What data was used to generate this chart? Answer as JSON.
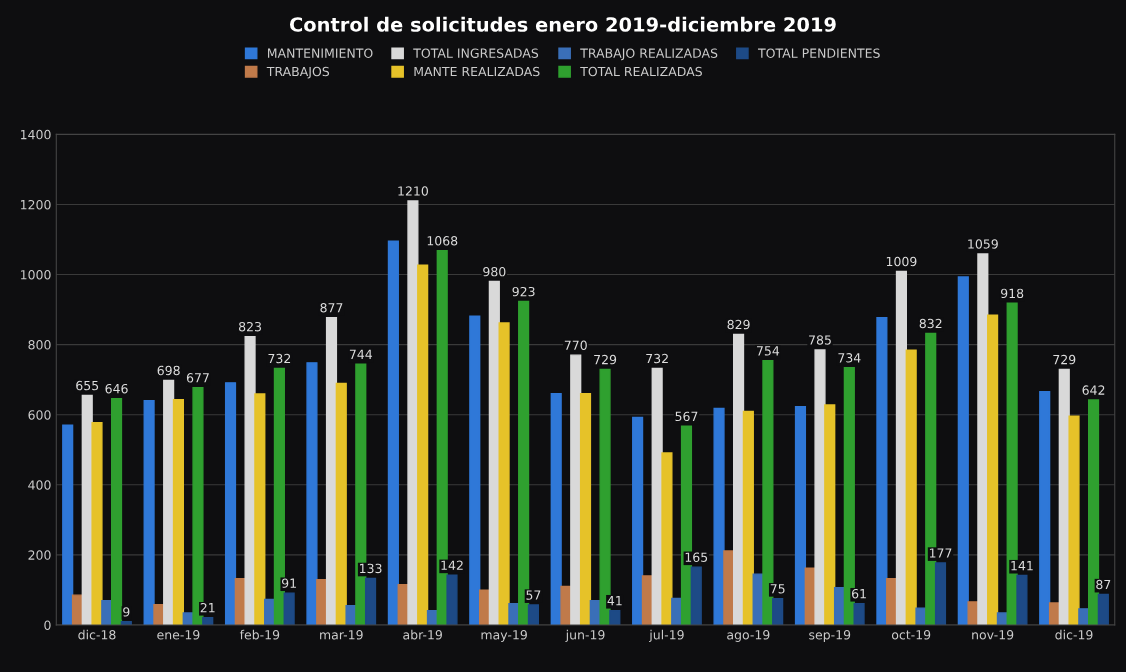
{
  "chart_data": {
    "type": "bar",
    "title": "Control de solicitudes enero 2019-diciembre 2019",
    "categories": [
      "dic-18",
      "ene-19",
      "feb-19",
      "mar-19",
      "abr-19",
      "may-19",
      "jun-19",
      "jul-19",
      "ago-19",
      "sep-19",
      "oct-19",
      "nov-19",
      "dic-19"
    ],
    "series": [
      {
        "name": "MANTENIMIENTO",
        "color": "#2f78d8",
        "values": [
          570,
          640,
          691,
          748,
          1095,
          881,
          660,
          592,
          618,
          623,
          877,
          993,
          666
        ]
      },
      {
        "name": "TRABAJOS",
        "color": "#c07a4a",
        "values": [
          85,
          58,
          132,
          129,
          115,
          99,
          110,
          140,
          211,
          162,
          132,
          66,
          63
        ]
      },
      {
        "name": "TOTAL INGRESADAS",
        "color": "#d9d9d9",
        "values": [
          655,
          698,
          823,
          877,
          1210,
          980,
          770,
          732,
          829,
          785,
          1009,
          1059,
          729
        ],
        "value_labels": [
          "655",
          "698",
          "823",
          "877",
          "1210",
          "980",
          "770",
          "732",
          "829",
          "785",
          "1009",
          "1059",
          "729"
        ]
      },
      {
        "name": "MANTE REALIZADAS",
        "color": "#e6c229",
        "values": [
          577,
          643,
          659,
          689,
          1027,
          862,
          660,
          491,
          609,
          628,
          784,
          884,
          596
        ]
      },
      {
        "name": "TRABAJO REALIZADAS",
        "color": "#3a6fb8",
        "values": [
          69,
          34,
          73,
          55,
          41,
          61,
          69,
          76,
          145,
          106,
          48,
          34,
          46
        ]
      },
      {
        "name": "TOTAL REALIZADAS",
        "color": "#2fa02f",
        "values": [
          646,
          677,
          732,
          744,
          1068,
          923,
          729,
          567,
          754,
          734,
          832,
          918,
          642
        ],
        "value_labels": [
          "646",
          "677",
          "732",
          "744",
          "1068",
          "923",
          "729",
          "567",
          "754",
          "734",
          "832",
          "918",
          "642"
        ]
      },
      {
        "name": "TOTAL PENDIENTES",
        "color": "#1d4a86",
        "values": [
          9,
          21,
          91,
          133,
          142,
          57,
          41,
          165,
          75,
          61,
          177,
          141,
          87
        ],
        "value_labels": [
          "9",
          "21",
          "91",
          "133",
          "142",
          "57",
          "41",
          "165",
          "75",
          "61",
          "177",
          "141",
          "87"
        ]
      }
    ],
    "ylim": [
      0,
      1400
    ],
    "yticks": [
      0,
      200,
      400,
      600,
      800,
      1000,
      1200,
      1400
    ],
    "grid": "y",
    "legend": "top"
  }
}
